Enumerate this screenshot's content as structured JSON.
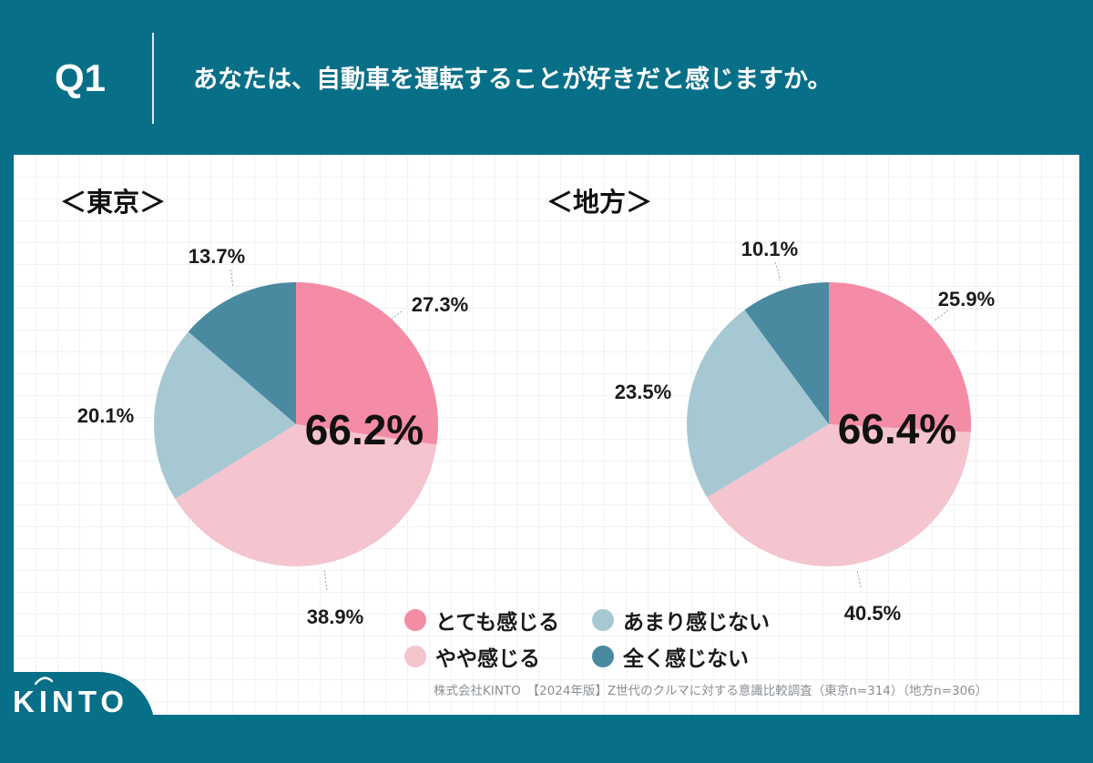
{
  "question": {
    "number": "Q1",
    "text": "あなたは、自動車を運転することが好きだと感じますか。"
  },
  "colors": {
    "header_bg": "#086f88",
    "strong_agree": "#f48ca5",
    "somewhat_agree": "#f4c4cf",
    "not_much": "#a6c8d3",
    "not_at_all": "#4a8aa1"
  },
  "chart_data": [
    {
      "type": "pie",
      "title": "＜東京＞",
      "categories": [
        "とても感じる",
        "やや感じる",
        "あまり感じない",
        "全く感じない"
      ],
      "values": [
        27.3,
        38.9,
        20.1,
        13.7
      ],
      "value_labels": [
        "27.3%",
        "38.9%",
        "20.1%",
        "13.7%"
      ],
      "center_label": "66.2%",
      "start": "12 o'clock, clockwise"
    },
    {
      "type": "pie",
      "title": "＜地方＞",
      "categories": [
        "とても感じる",
        "やや感じる",
        "あまり感じない",
        "全く感じない"
      ],
      "values": [
        25.9,
        40.5,
        23.5,
        10.1
      ],
      "value_labels": [
        "25.9%",
        "40.5%",
        "23.5%",
        "10.1%"
      ],
      "center_label": "66.4%",
      "start": "12 o'clock, clockwise"
    }
  ],
  "legend": [
    {
      "label": "とても感じる",
      "color": "#f48ca5"
    },
    {
      "label": "あまり感じない",
      "color": "#a6c8d3"
    },
    {
      "label": "やや感じる",
      "color": "#f4c4cf"
    },
    {
      "label": "全く感じない",
      "color": "#4a8aa1"
    }
  ],
  "footer": {
    "source": "株式会社KINTO　【2024年版】Z世代のクルマに対する意識比較調査（東京n=314）（地方n=306）",
    "logo": "KINTO"
  }
}
